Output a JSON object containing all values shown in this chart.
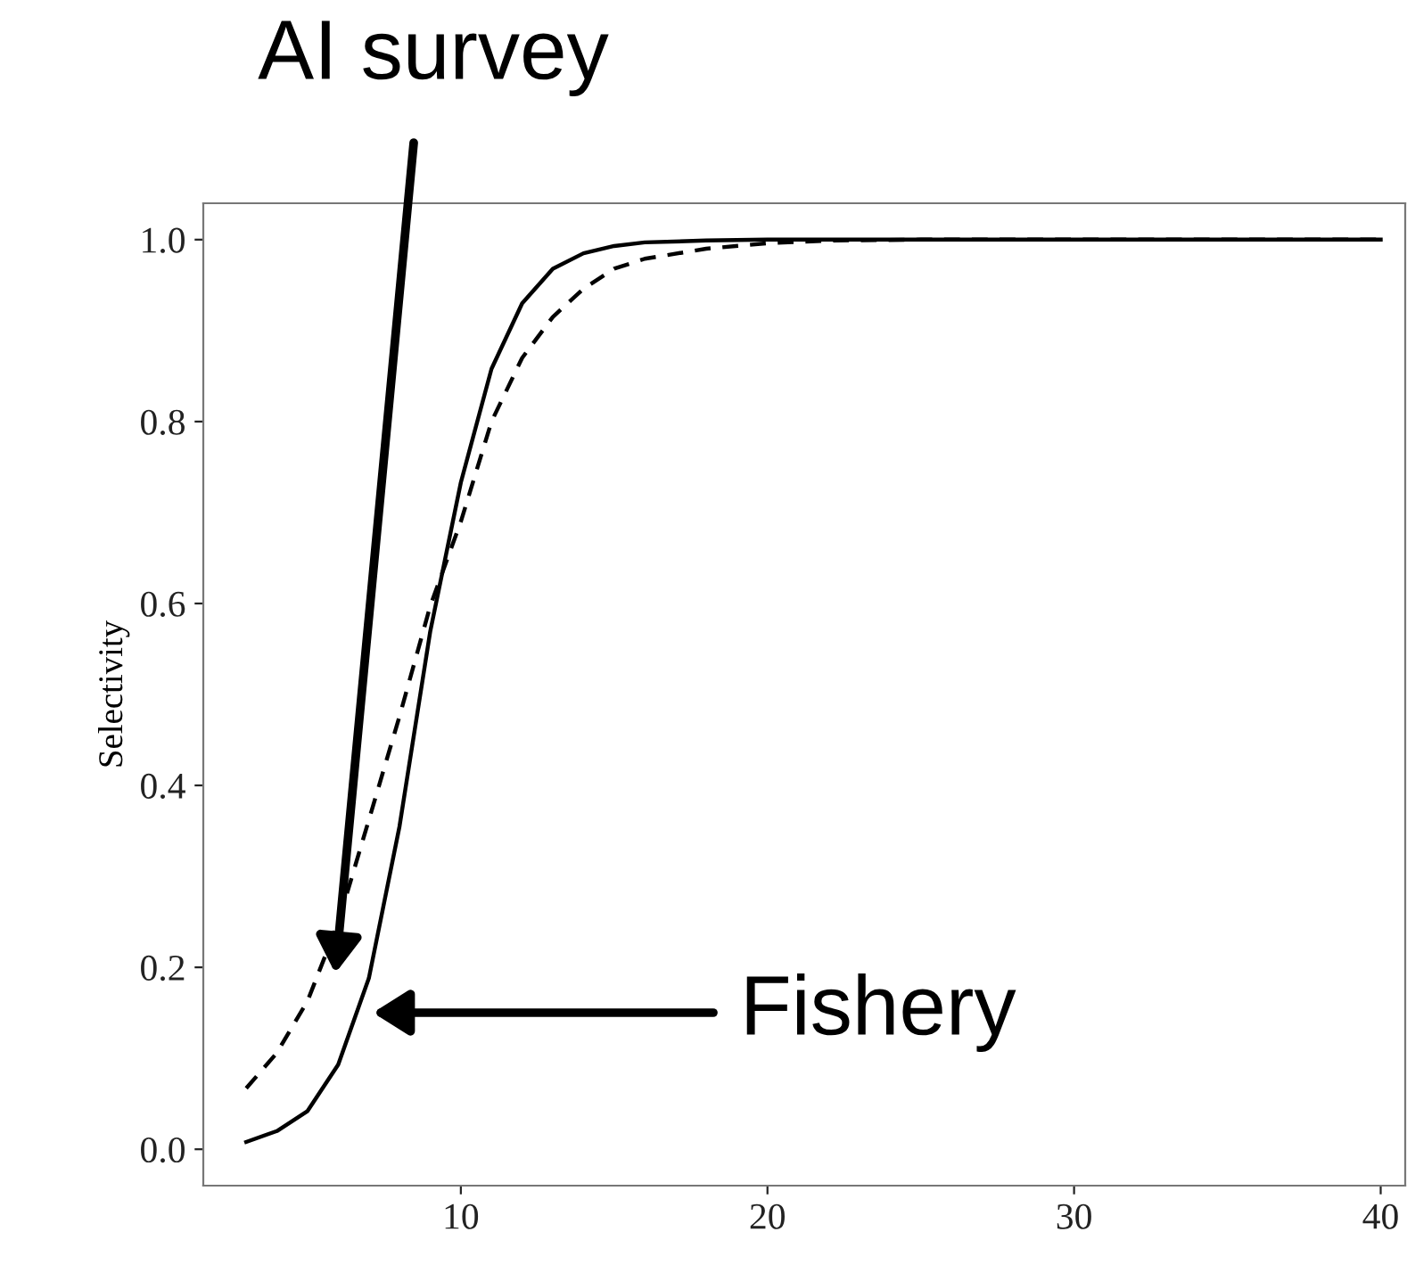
{
  "chart_data": {
    "type": "line",
    "ylabel": "Selectivity",
    "x": [
      3,
      4,
      5,
      6,
      7,
      8,
      9,
      10,
      11,
      12,
      13,
      14,
      15,
      16,
      18,
      20,
      22,
      25,
      30,
      35,
      40
    ],
    "series": [
      {
        "color": "#000000",
        "line_style": "solid",
        "values": [
          0.008,
          0.02,
          0.042,
          0.093,
          0.188,
          0.355,
          0.569,
          0.733,
          0.858,
          0.93,
          0.968,
          0.985,
          0.993,
          0.997,
          0.999,
          1.0,
          1.0,
          1.0,
          1.0,
          1.0,
          1.0
        ]
      },
      {
        "color": "#000000",
        "line_style": "dashed",
        "values": [
          0.067,
          0.106,
          0.163,
          0.249,
          0.362,
          0.476,
          0.597,
          0.69,
          0.8,
          0.87,
          0.915,
          0.946,
          0.968,
          0.979,
          0.99,
          0.996,
          0.999,
          1.0,
          1.0,
          1.0,
          1.0
        ]
      }
    ],
    "xlim": [
      1.6,
      40.8
    ],
    "ylim": [
      -0.04,
      1.04
    ],
    "xticks": [
      10,
      20,
      30,
      40
    ],
    "yticks": [
      {
        "value": 0,
        "label": "0.0"
      },
      {
        "value": 0.2,
        "label": "0.2"
      },
      {
        "value": 0.4,
        "label": "0.4"
      },
      {
        "value": 0.6,
        "label": "0.6"
      },
      {
        "value": 0.8,
        "label": "0.8"
      },
      {
        "value": 1,
        "label": "1.0"
      }
    ],
    "grid": false,
    "legend": false,
    "annotations": [
      "AI survey",
      "Fishery"
    ]
  }
}
